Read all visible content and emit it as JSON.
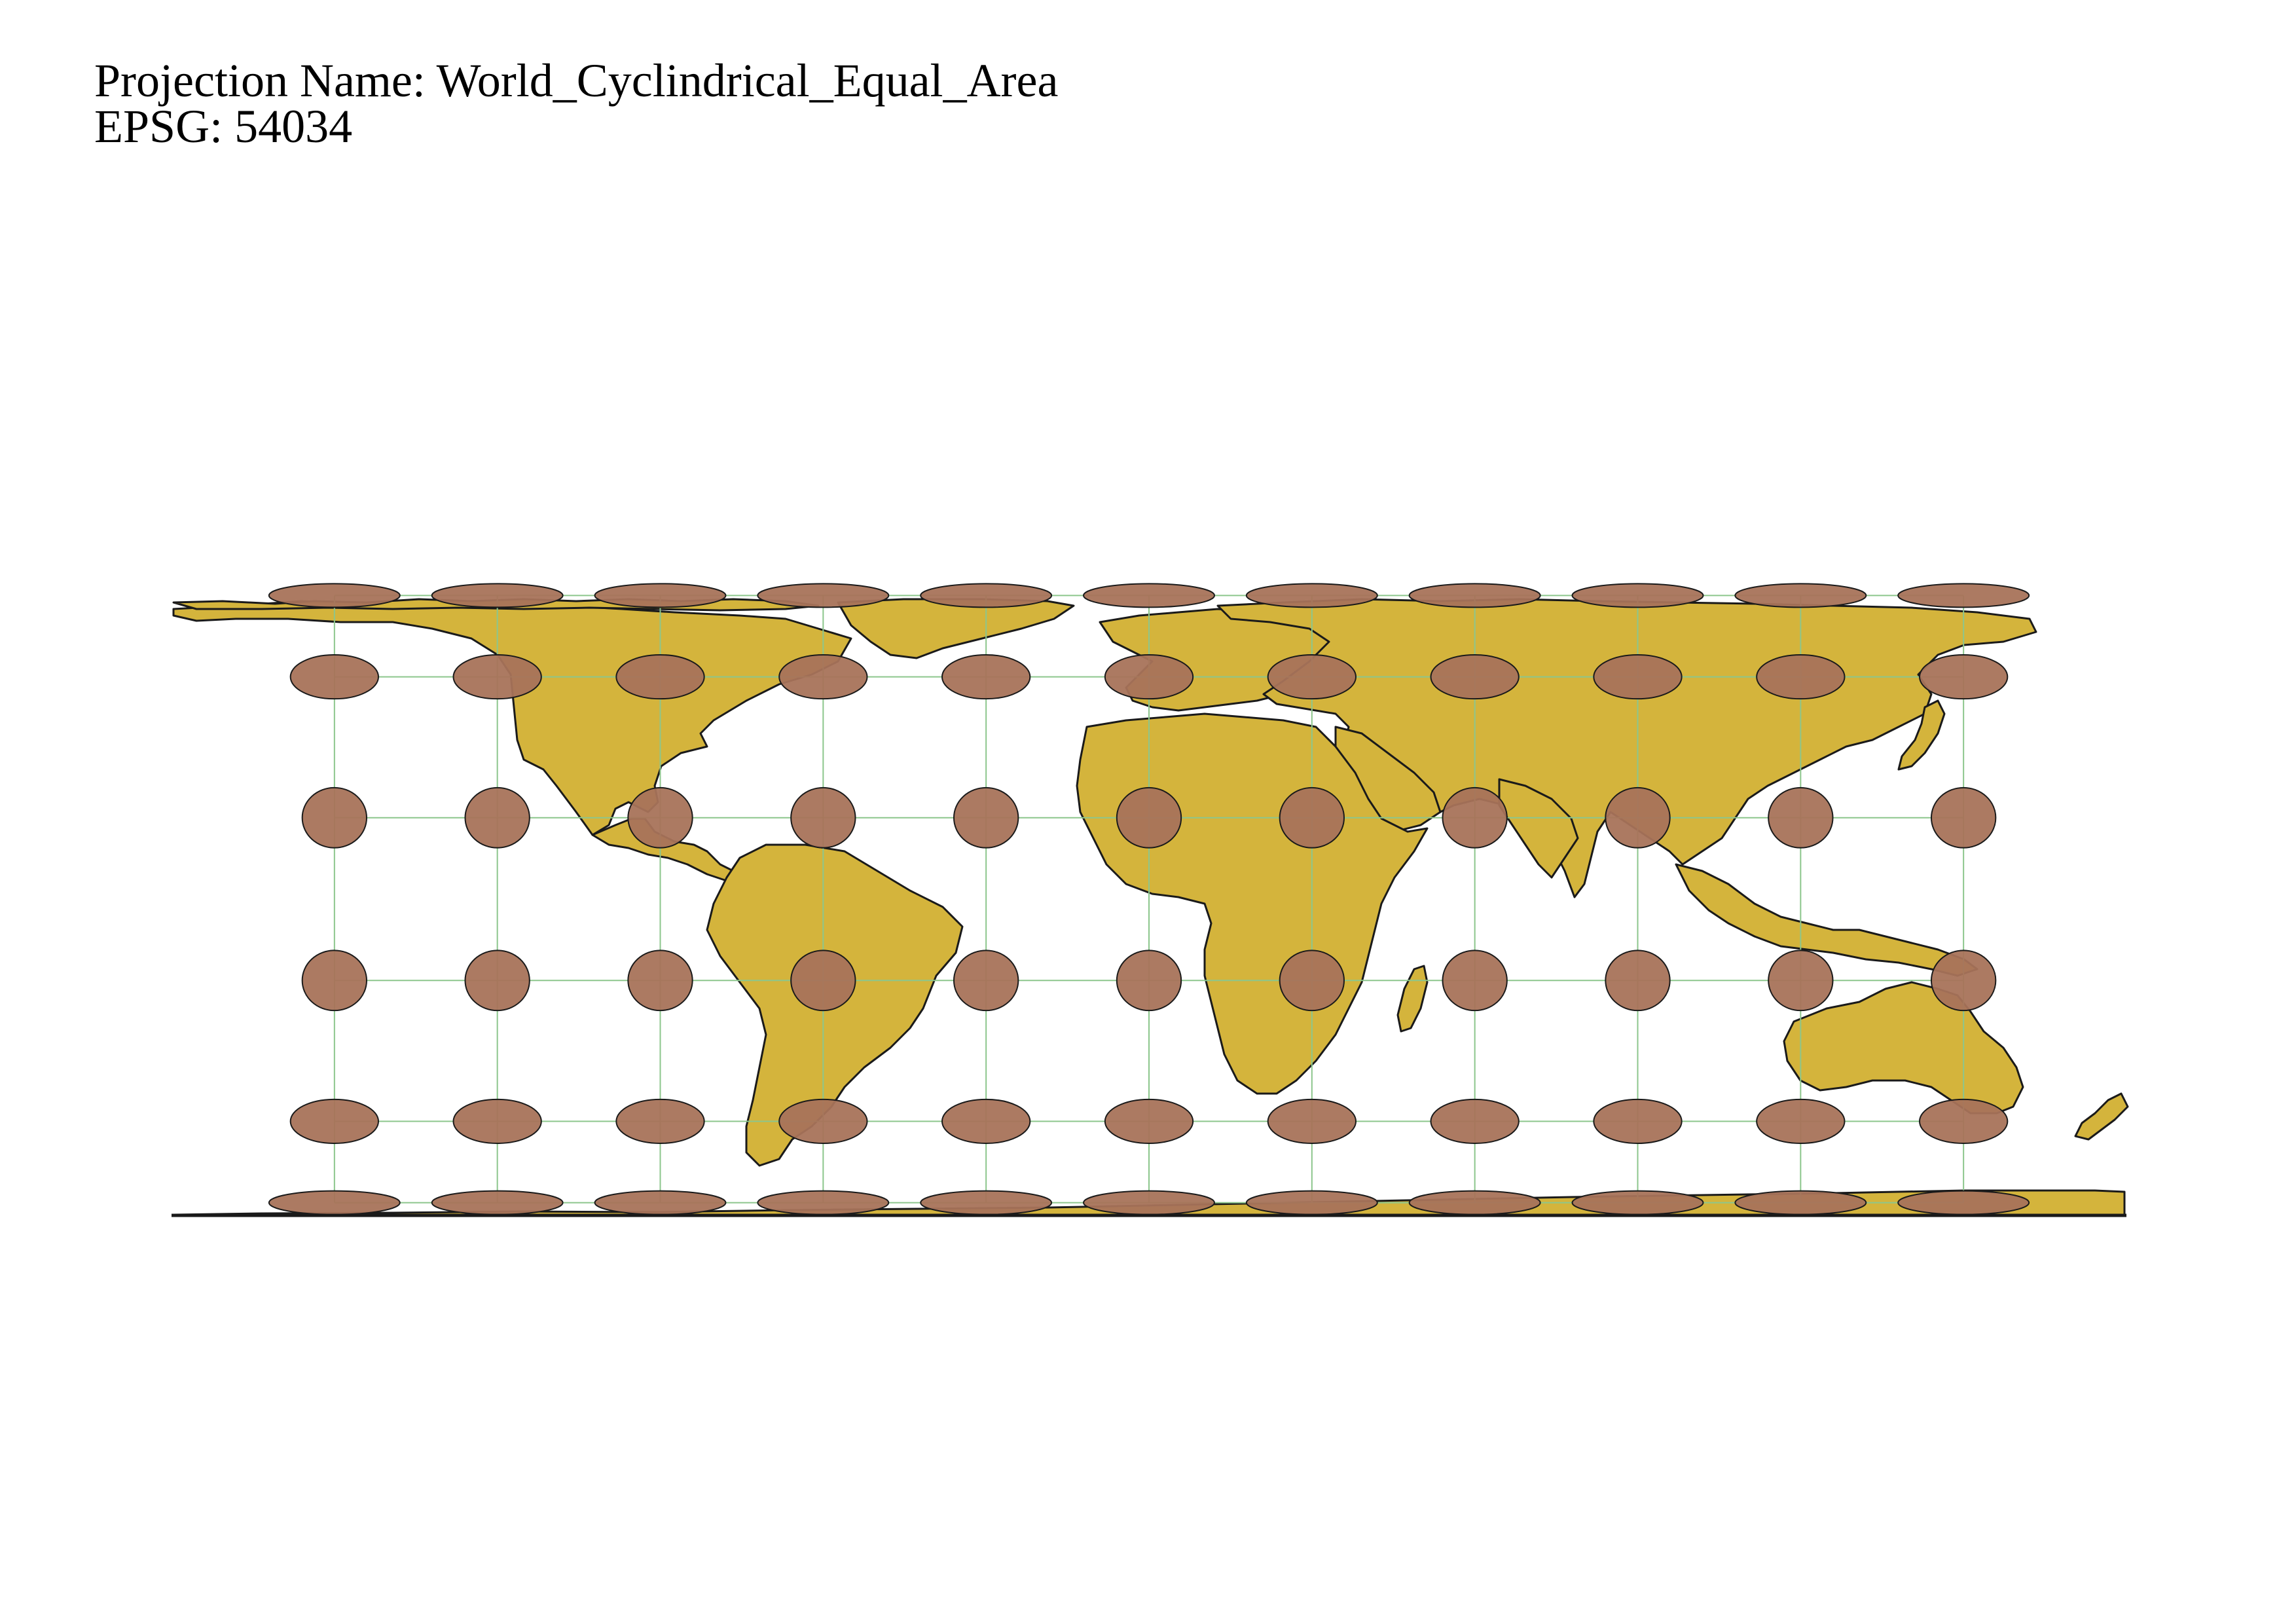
{
  "header": {
    "projection_line": "Projection Name: World_Cyclindrical_Equal_Area",
    "epsg_line": "EPSG: 54034"
  },
  "map": {
    "projection": "World_Cyclindrical_Equal_Area",
    "epsg": "54034",
    "colors": {
      "land": "#d4b43c",
      "land_outline": "#1a1a1a",
      "indicatrix_fill": "#a8735a",
      "indicatrix_outline": "#1a1a1a",
      "graticule": "#8cc68c",
      "background": "#ffffff"
    },
    "indicatrix": {
      "longitudes": [
        -150,
        -120,
        -90,
        -60,
        -30,
        0,
        30,
        60,
        90,
        120,
        150
      ],
      "latitudes": [
        75,
        45,
        15,
        -15,
        -45,
        -75
      ]
    },
    "graticule": {
      "longitudes": [
        -150,
        -120,
        -90,
        -60,
        -30,
        0,
        30,
        60,
        90,
        120,
        150
      ],
      "latitudes": [
        75,
        45,
        15,
        -15,
        -45,
        -75
      ]
    }
  }
}
